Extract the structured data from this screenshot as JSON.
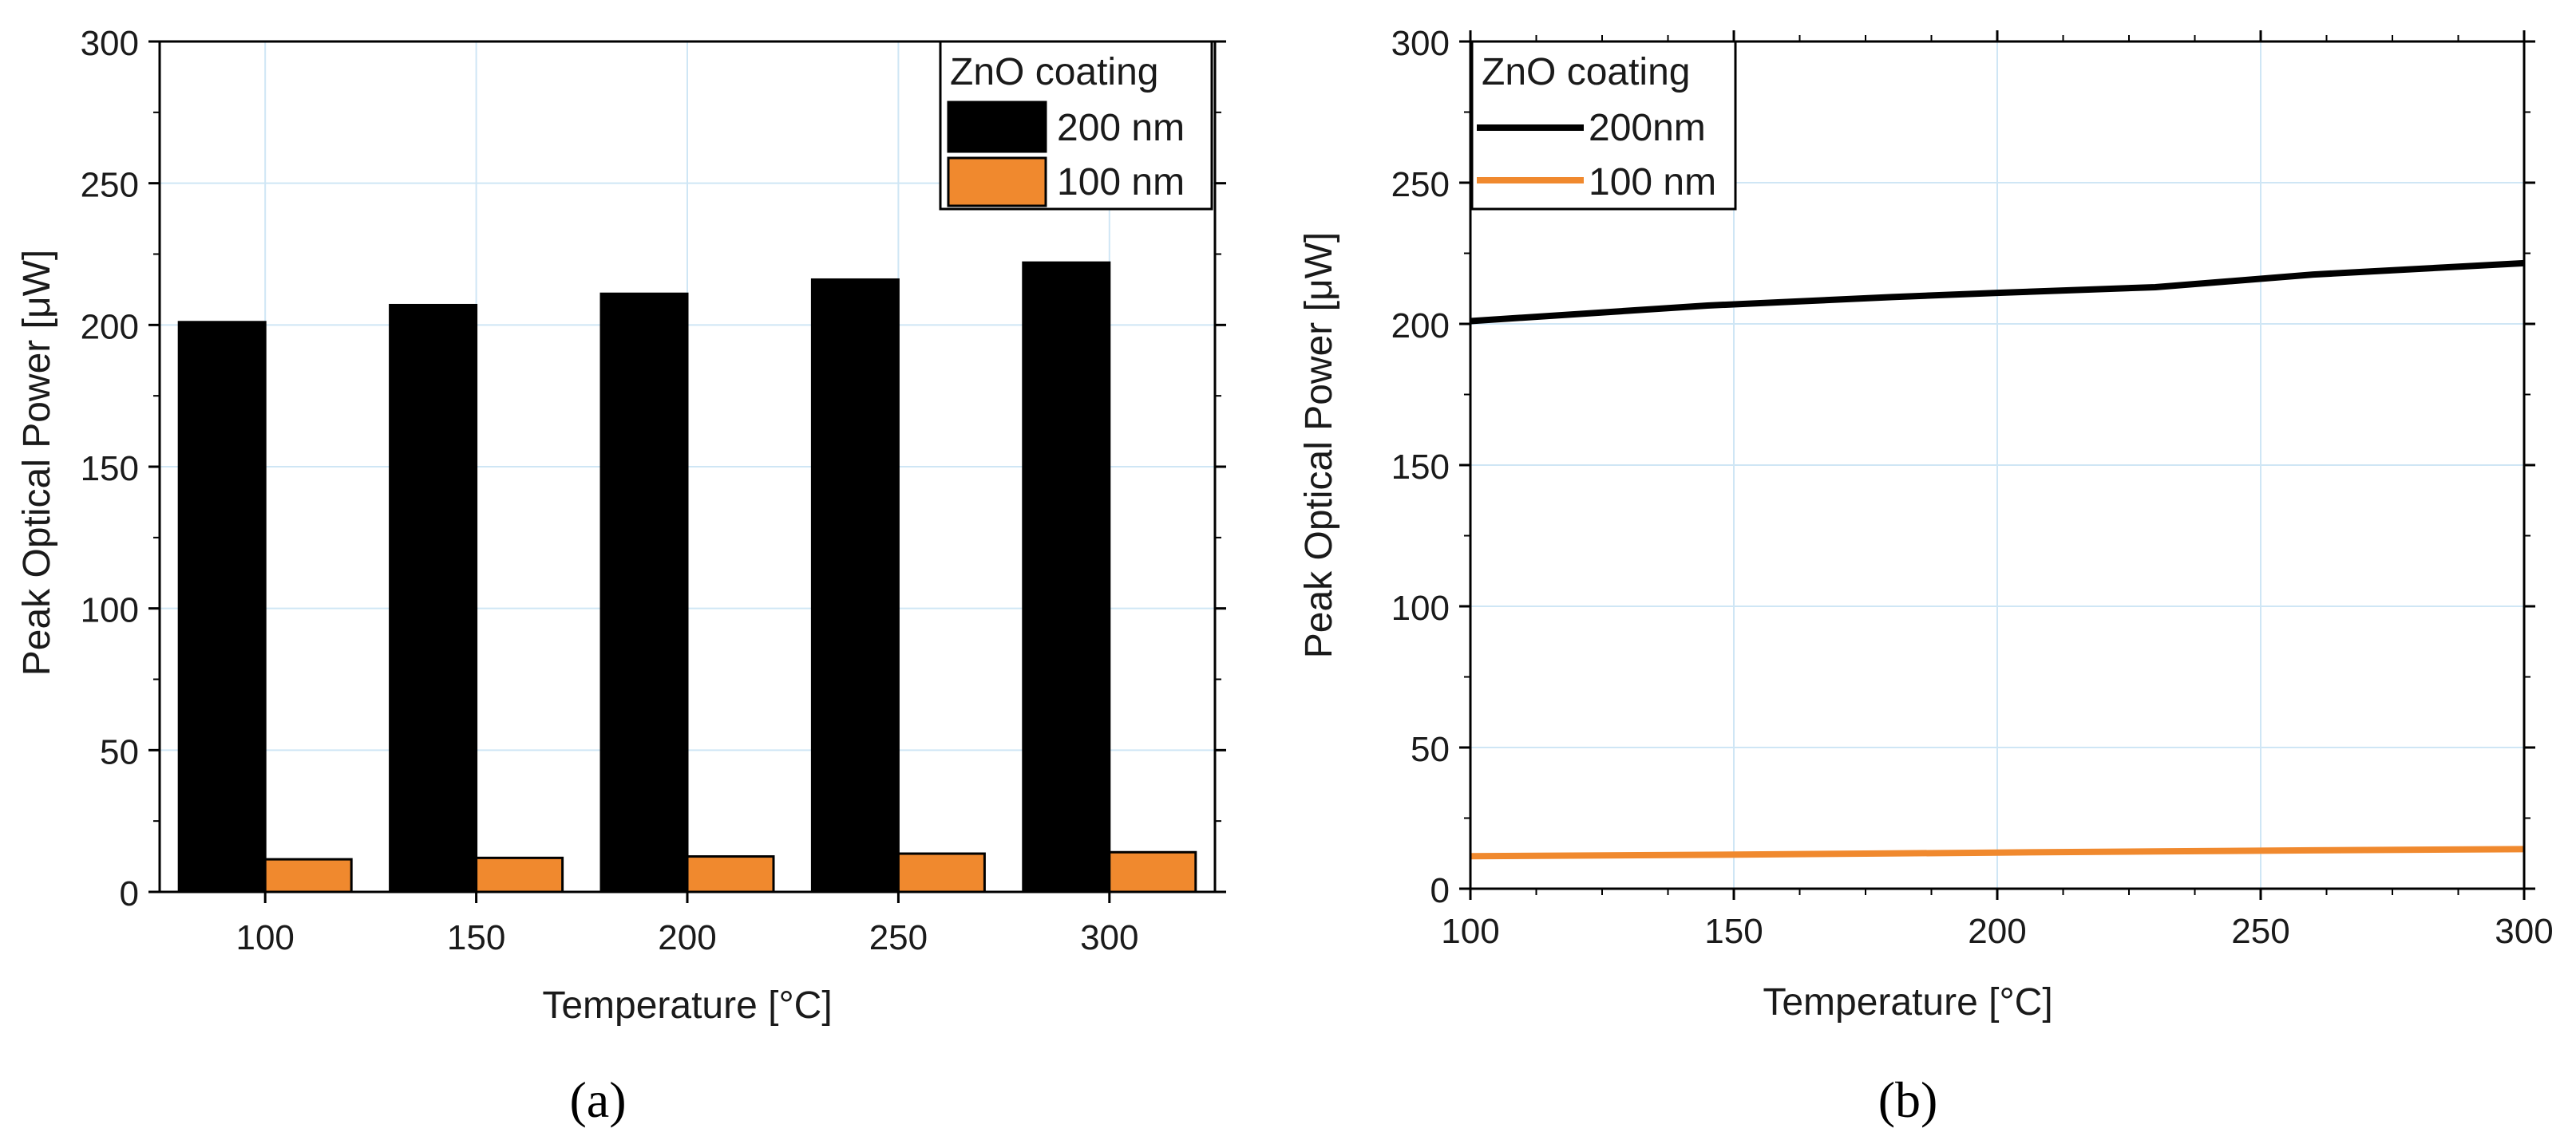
{
  "colors": {
    "series_200": "#000000",
    "series_100": "#f0892e",
    "grid": "#cfe6f5",
    "axis": "#000000"
  },
  "chart_data": [
    {
      "type": "bar",
      "panel": "(a)",
      "xlabel": "Temperature [°C]",
      "ylabel": "Peak Optical Power [μW]",
      "ylim": [
        0,
        300
      ],
      "yticks": [
        "0",
        "50",
        "100",
        "150",
        "200",
        "250",
        "300"
      ],
      "categories": [
        "100",
        "150",
        "200",
        "250",
        "300"
      ],
      "legend_title": "ZnO coating",
      "legend_position": "top-right",
      "grid": true,
      "series": [
        {
          "name": "200 nm",
          "color": "#000000",
          "values": [
            201,
            207,
            211,
            216,
            222
          ]
        },
        {
          "name": "100 nm",
          "color": "#f0892e",
          "values": [
            11.5,
            12,
            12.5,
            13.5,
            14
          ]
        }
      ]
    },
    {
      "type": "line",
      "panel": "(b)",
      "xlabel": "Temperature [°C]",
      "ylabel": "Peak Optical Power [μW]",
      "xlim": [
        100,
        300
      ],
      "ylim": [
        0,
        300
      ],
      "xticks": [
        "100",
        "150",
        "200",
        "250",
        "300"
      ],
      "yticks": [
        "0",
        "50",
        "100",
        "150",
        "200",
        "250",
        "300"
      ],
      "legend_title": "ZnO coating",
      "legend_position": "top-left",
      "grid": true,
      "x": [
        100,
        145,
        180,
        200,
        230,
        260,
        300
      ],
      "series": [
        {
          "name": "200nm",
          "color": "#000000",
          "values": [
            201,
            206.5,
            209.5,
            211,
            213,
            217.5,
            221.5
          ]
        },
        {
          "name": "100 nm",
          "color": "#f0892e",
          "values": [
            11.5,
            12,
            12.5,
            12.8,
            13.2,
            13.6,
            14
          ]
        }
      ]
    }
  ]
}
